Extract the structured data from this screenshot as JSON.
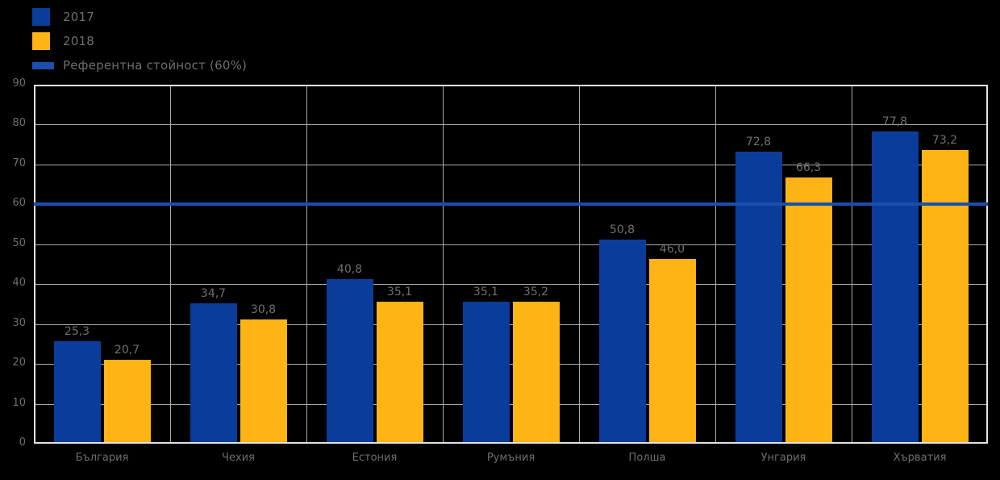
{
  "legend": {
    "items": [
      {
        "label": "2017",
        "swatch": "square",
        "color": "#0a3d9b"
      },
      {
        "label": "2018",
        "swatch": "square",
        "color": "#fdb414"
      },
      {
        "label": "Референтна стойност (60%)",
        "swatch": "line",
        "color": "#1b4fad"
      }
    ]
  },
  "chart_data": {
    "type": "bar",
    "title": "",
    "xlabel": "",
    "ylabel": "",
    "categories": [
      "България",
      "Чехия",
      "Естония",
      "Румъния",
      "Полша",
      "Унгария",
      "Хърватия"
    ],
    "series": [
      {
        "name": "2017",
        "color": "#0a3d9b",
        "values": [
          25.3,
          34.7,
          40.8,
          35.1,
          50.8,
          72.8,
          77.8
        ],
        "data_labels": [
          "25,3",
          "34,7",
          "40,8",
          "35,1",
          "50,8",
          "72,8",
          "77,8"
        ]
      },
      {
        "name": "2018",
        "color": "#fdb414",
        "values": [
          20.7,
          30.8,
          35.1,
          35.2,
          46.0,
          66.3,
          73.2
        ],
        "data_labels": [
          "20,7",
          "30,8",
          "35,1",
          "35,2",
          "46,0",
          "66,3",
          "73,2"
        ]
      }
    ],
    "reference_line": {
      "label": "Референтна стойност (60%)",
      "value": 60,
      "color": "#1b4fad"
    },
    "ylim": [
      0,
      90
    ],
    "yticks": [
      0,
      10,
      20,
      30,
      40,
      50,
      60,
      70,
      80,
      90
    ],
    "grid": true,
    "legend_position": "top-left",
    "value_format": "comma-decimal",
    "colors": {
      "background": "#000000",
      "gridline": "#ababab",
      "plot_border": "#e3e3e3",
      "text": "#6e6e6e"
    }
  }
}
